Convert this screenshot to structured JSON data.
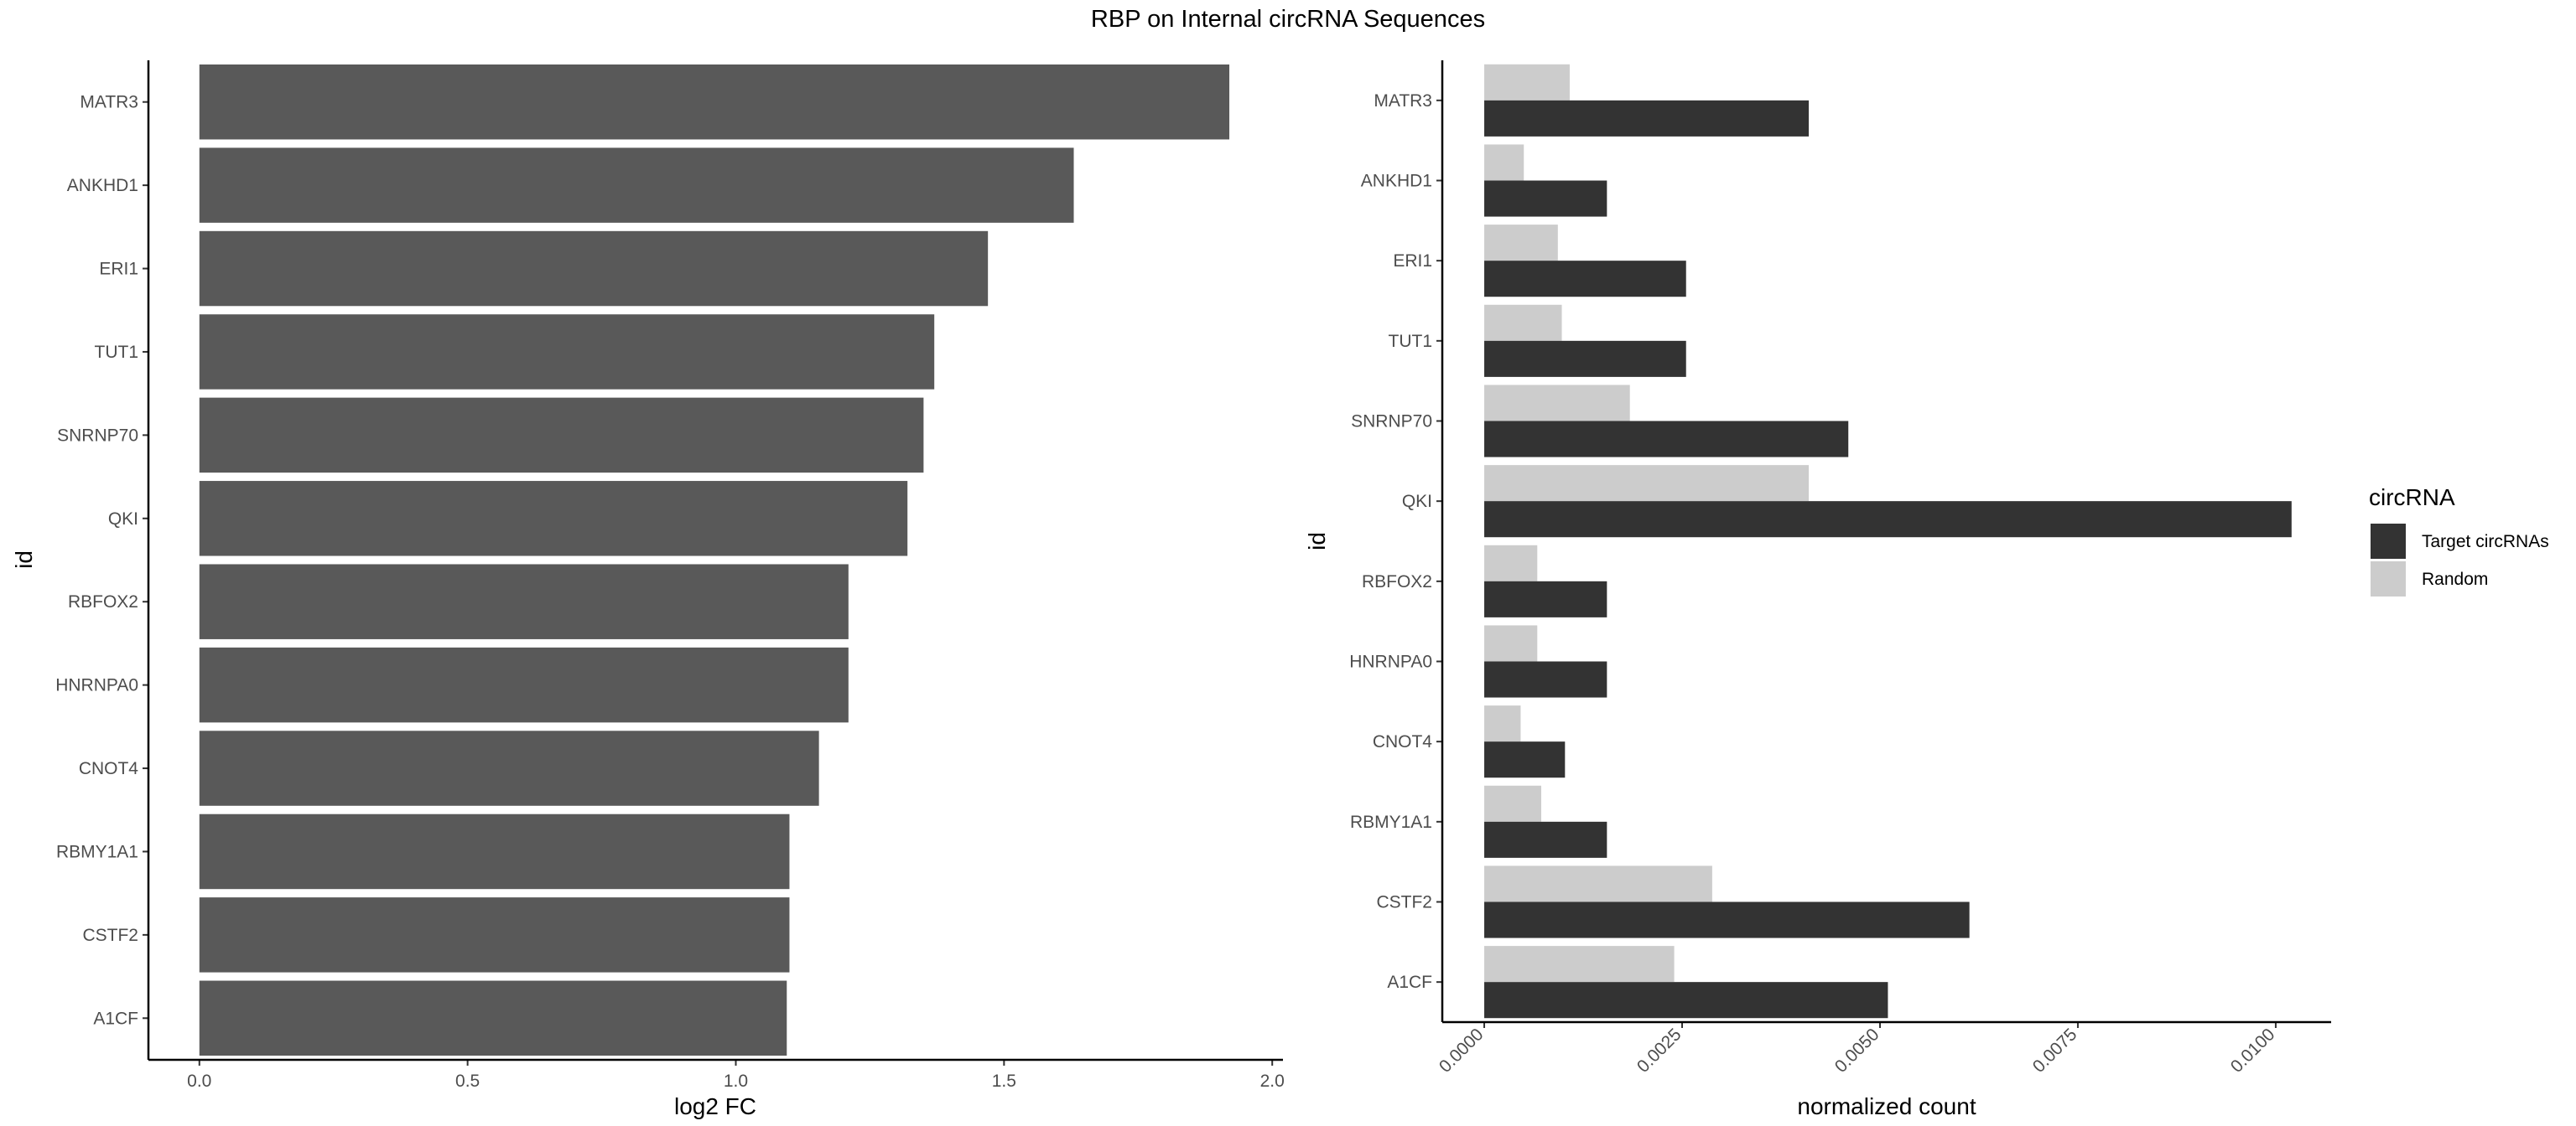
{
  "title": "RBP on Internal circRNA Sequences",
  "chart_data": [
    {
      "type": "bar",
      "orientation": "horizontal",
      "categories": [
        "MATR3",
        "ANKHD1",
        "ERI1",
        "TUT1",
        "SNRNP70",
        "QKI",
        "RBFOX2",
        "HNRNPA0",
        "CNOT4",
        "RBMY1A1",
        "CSTF2",
        "A1CF"
      ],
      "values": [
        1.92,
        1.63,
        1.47,
        1.37,
        1.35,
        1.32,
        1.21,
        1.21,
        1.155,
        1.1,
        1.1,
        1.095
      ],
      "xlabel": "log2 FC",
      "ylabel": "id",
      "xlim": [
        -0.095,
        2.02
      ],
      "xticks": [
        0.0,
        0.5,
        1.0,
        1.5,
        2.0
      ],
      "xtick_labels": [
        "0.0",
        "0.5",
        "1.0",
        "1.5",
        "2.0"
      ],
      "color": "#595959",
      "grid": false
    },
    {
      "type": "bar",
      "orientation": "horizontal",
      "grouping": "dodge",
      "categories": [
        "MATR3",
        "ANKHD1",
        "ERI1",
        "TUT1",
        "SNRNP70",
        "QKI",
        "RBFOX2",
        "HNRNPA0",
        "CNOT4",
        "RBMY1A1",
        "CSTF2",
        "A1CF"
      ],
      "series": [
        {
          "name": "Target circRNAs",
          "color": "#333333",
          "values": [
            0.0041,
            0.00155,
            0.00255,
            0.00255,
            0.0046,
            0.0102,
            0.00155,
            0.00155,
            0.00102,
            0.00155,
            0.00613,
            0.0051
          ]
        },
        {
          "name": "Random",
          "color": "#cccccc",
          "values": [
            0.00108,
            0.0005,
            0.00093,
            0.00098,
            0.00184,
            0.0041,
            0.00067,
            0.00067,
            0.00046,
            0.00072,
            0.00288,
            0.0024
          ]
        }
      ],
      "xlabel": "normalized count",
      "ylabel": "id",
      "xlim": [
        -0.00053,
        0.0107
      ],
      "xticks": [
        0.0,
        0.0025,
        0.005,
        0.0075,
        0.01
      ],
      "xtick_labels": [
        "0.0000",
        "0.0025",
        "0.0050",
        "0.0075",
        "0.0100"
      ],
      "legend": {
        "title": "circRNA",
        "position": "right",
        "entries": [
          "Target circRNAs",
          "Random"
        ]
      },
      "grid": false
    }
  ]
}
